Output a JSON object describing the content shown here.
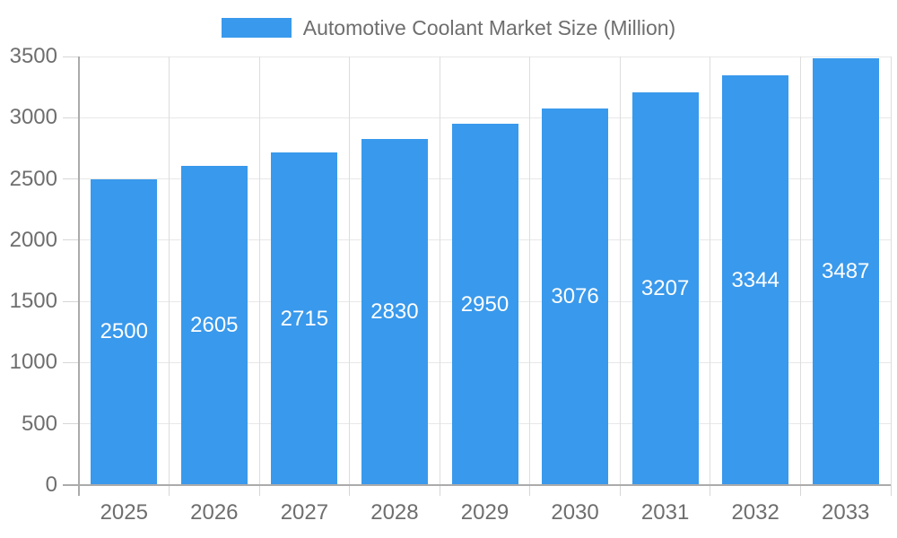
{
  "legend": {
    "label": "Automotive Coolant Market Size (Million)"
  },
  "chart_data": {
    "type": "bar",
    "title": "Automotive Coolant Market Size (Million)",
    "categories": [
      "2025",
      "2026",
      "2027",
      "2028",
      "2029",
      "2030",
      "2031",
      "2032",
      "2033"
    ],
    "values": [
      2500,
      2605,
      2715,
      2830,
      2950,
      3076,
      3207,
      3344,
      3487
    ],
    "bar_labels": [
      "2500",
      "2605",
      "2715",
      "2830",
      "2950",
      "3076",
      "3207",
      "3344",
      "3487"
    ],
    "y_ticks": [
      0,
      500,
      1000,
      1500,
      2000,
      2500,
      3000,
      3500
    ],
    "ylim": [
      0,
      3500
    ],
    "xlabel": "",
    "ylabel": "",
    "legend_position": "top",
    "grid": true,
    "value_labels_inside_bars": true
  },
  "colors": {
    "bar": "#3999EC",
    "bar_label": "#FFFFFF",
    "grid_horizontal": "#E8E8E8",
    "grid_vertical": "#DDDDDD",
    "tick": "#D6D6D6",
    "axis": "#ABABAB",
    "text": "#6E6E6E",
    "background": "#FFFFFF"
  }
}
